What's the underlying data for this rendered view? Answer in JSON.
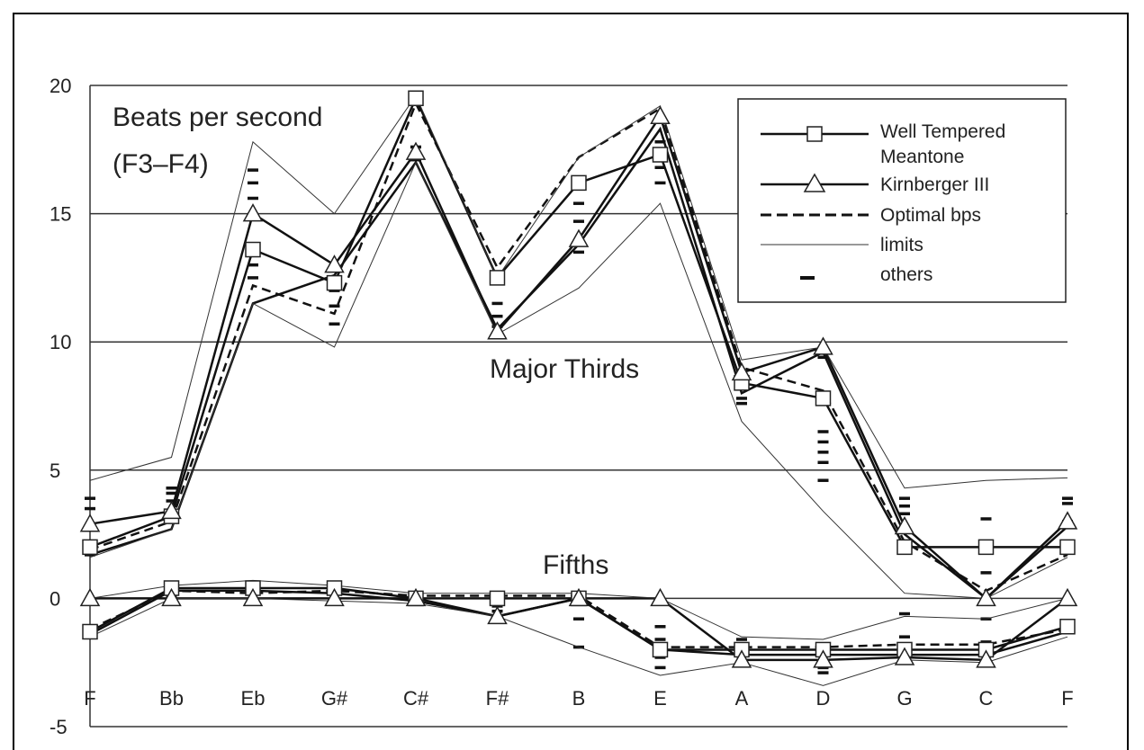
{
  "chart_data": {
    "type": "line",
    "title": "",
    "xlabel": "",
    "ylabel": "",
    "ylim": [
      -5,
      20
    ],
    "yticks": [
      20,
      15,
      10,
      5,
      0,
      -5
    ],
    "grid": "horizontal",
    "legend_position": "top-right",
    "categories": [
      "F",
      "Bb",
      "Eb",
      "G#",
      "C#",
      "F#",
      "B",
      "E",
      "A",
      "D",
      "G",
      "C",
      "F"
    ],
    "annotations": {
      "beats_line1": "Beats per second",
      "beats_line2": "(F3–F4)",
      "major_thirds": "Major Thirds",
      "fifths": "Fifths"
    },
    "legend": [
      {
        "label": "Well Tempered",
        "style": "square"
      },
      {
        "label": "Meantone",
        "style": "none"
      },
      {
        "label": "Kirnberger III",
        "style": "triangle"
      },
      {
        "label": "Optimal bps",
        "style": "dashed"
      },
      {
        "label": "limits",
        "style": "thin"
      },
      {
        "label": "others",
        "style": "dash-mark"
      }
    ],
    "series": [
      {
        "name": "Well Tempered",
        "group": "Major Thirds",
        "marker": "square",
        "values": [
          2.0,
          3.2,
          13.6,
          12.3,
          19.5,
          12.5,
          16.2,
          17.3,
          8.4,
          7.8,
          2.0,
          2.0,
          2.0
        ]
      },
      {
        "name": "Meantone",
        "group": "Major Thirds",
        "marker": "none",
        "values": [
          1.7,
          2.7,
          11.5,
          12.6,
          17.0,
          10.5,
          13.8,
          18.3,
          8.0,
          9.6,
          2.5,
          0.0,
          2.8
        ]
      },
      {
        "name": "Kirnberger III",
        "group": "Major Thirds",
        "marker": "triangle",
        "values": [
          2.9,
          3.4,
          15.0,
          13.0,
          17.4,
          10.4,
          14.0,
          18.8,
          8.8,
          9.8,
          2.8,
          0.0,
          3.0
        ]
      },
      {
        "name": "Optimal bps",
        "group": "Major Thirds",
        "marker": "none",
        "values": [
          1.9,
          3.0,
          12.2,
          11.1,
          19.3,
          12.9,
          17.2,
          19.1,
          9.0,
          8.1,
          2.2,
          0.3,
          1.7
        ]
      },
      {
        "name": "limits",
        "group": "Major Thirds",
        "marker": "none",
        "values": [
          4.6,
          5.5,
          17.8,
          15.0,
          19.6,
          12.5,
          17.2,
          19.2,
          9.3,
          9.8,
          4.3,
          4.6,
          4.7
        ]
      },
      {
        "name": "limits",
        "group": "Major Thirds",
        "marker": "none",
        "values": [
          1.6,
          2.7,
          11.5,
          9.8,
          17.0,
          10.3,
          12.1,
          15.4,
          6.9,
          3.4,
          0.2,
          0.0,
          1.6
        ]
      },
      {
        "name": "Well Tempered",
        "group": "Fifths",
        "marker": "square",
        "values": [
          -1.3,
          0.4,
          0.4,
          0.4,
          0.0,
          0.0,
          0.0,
          -2.0,
          -2.0,
          -2.0,
          -2.0,
          -2.0,
          -1.1
        ]
      },
      {
        "name": "Meantone",
        "group": "Fifths",
        "marker": "none",
        "values": [
          -1.4,
          0.3,
          0.3,
          0.2,
          -0.1,
          -0.7,
          0.0,
          -2.0,
          -2.2,
          -2.2,
          -2.2,
          -2.2,
          -1.3
        ]
      },
      {
        "name": "Kirnberger III",
        "group": "Fifths",
        "marker": "triangle",
        "values": [
          0.0,
          0.0,
          0.0,
          0.0,
          0.0,
          -0.7,
          0.0,
          0.0,
          -2.4,
          -2.4,
          -2.3,
          -2.4,
          0.0
        ]
      },
      {
        "name": "Optimal bps",
        "group": "Fifths",
        "marker": "none",
        "values": [
          -1.2,
          0.3,
          0.2,
          0.3,
          0.1,
          0.1,
          0.1,
          -1.9,
          -1.9,
          -1.9,
          -1.8,
          -1.8,
          -1.2
        ]
      },
      {
        "name": "limits",
        "group": "Fifths",
        "marker": "none",
        "values": [
          0.0,
          0.5,
          0.7,
          0.5,
          0.2,
          0.2,
          0.2,
          0.0,
          -1.5,
          -1.6,
          -0.7,
          -0.8,
          0.0
        ]
      },
      {
        "name": "limits",
        "group": "Fifths",
        "marker": "none",
        "values": [
          -1.5,
          0.0,
          0.0,
          -0.1,
          -0.2,
          -0.7,
          -1.9,
          -3.0,
          -2.5,
          -3.4,
          -2.4,
          -2.5,
          -1.5
        ]
      }
    ],
    "others": {
      "values": [
        [
          3.9,
          3.5,
          1.7,
          -1.1,
          -1.5
        ],
        [
          4.3,
          4.1,
          3.8,
          3.3,
          0.4,
          0.1
        ],
        [
          16.7,
          16.2,
          15.6,
          14.8,
          13.0,
          12.5,
          0.5
        ],
        [
          12.9,
          12.0,
          11.4,
          10.7,
          0.3
        ],
        [
          19.3,
          17.6,
          17.1,
          0.1,
          -0.2
        ],
        [
          11.5,
          11.0,
          10.6,
          -0.3,
          -0.5
        ],
        [
          15.4,
          14.7,
          13.5,
          -0.8,
          -1.9
        ],
        [
          18.6,
          17.8,
          16.8,
          16.2,
          -1.1,
          -1.6,
          -2.3,
          -2.7
        ],
        [
          8.6,
          7.8,
          7.6,
          -1.6,
          -1.8,
          -2.2
        ],
        [
          9.4,
          6.5,
          6.1,
          5.7,
          5.3,
          4.6,
          -1.8,
          -2.7,
          -2.9
        ],
        [
          3.9,
          3.6,
          3.3,
          1.8,
          -0.6,
          -1.5,
          -2.0
        ],
        [
          3.1,
          2.0,
          1.0,
          -0.8,
          -1.7,
          -2.0
        ],
        [
          3.9,
          3.7,
          3.0,
          -1.3
        ]
      ]
    }
  }
}
